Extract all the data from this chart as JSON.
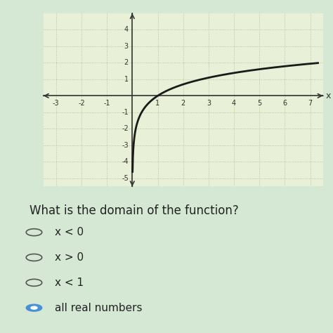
{
  "background_color": "#d4e8d4",
  "graph_bg_color": "#e8f0d8",
  "xlim": [
    -3.5,
    7.5
  ],
  "ylim": [
    -5.5,
    5.0
  ],
  "xticks": [
    -3,
    -2,
    -1,
    1,
    2,
    3,
    4,
    5,
    6,
    7
  ],
  "yticks": [
    -5,
    -4,
    -3,
    -2,
    -1,
    1,
    2,
    3,
    4
  ],
  "xlabel": "x",
  "grid_color": "#b0b890",
  "axis_color": "#333333",
  "curve_color": "#1a1a1a",
  "curve_linewidth": 2.0,
  "question_text": "What is the domain of the function?",
  "options": [
    "x < 0",
    "x > 0",
    "x < 1",
    "all real numbers"
  ],
  "selected_option": 3,
  "option_text_color": "#222222",
  "question_fontsize": 12,
  "option_fontsize": 11
}
